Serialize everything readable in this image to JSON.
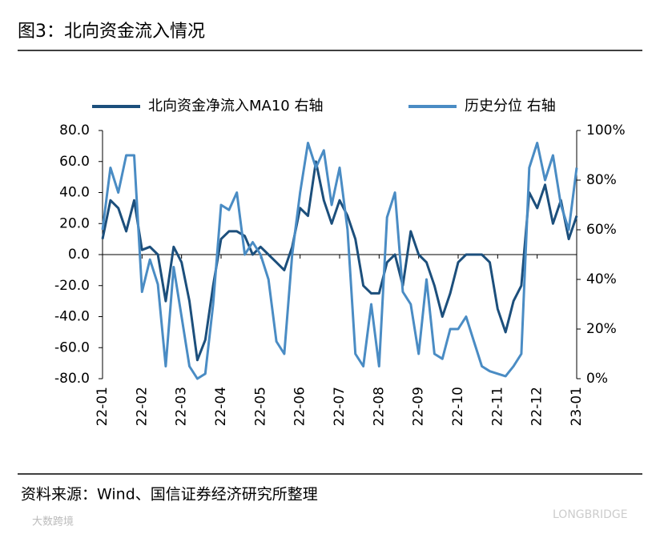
{
  "chart_data": {
    "type": "line",
    "title": "图3：北向资金流入情况",
    "source": "资料来源：Wind、国信证券经济研究所整理",
    "watermarks": [
      "大数跨境",
      "LONGBRIDGE"
    ],
    "categories": [
      "22-01",
      null,
      null,
      null,
      null,
      "22-02",
      null,
      null,
      null,
      null,
      "22-03",
      null,
      null,
      null,
      null,
      "22-04",
      null,
      null,
      null,
      null,
      "22-05",
      null,
      null,
      null,
      null,
      "22-06",
      null,
      null,
      null,
      null,
      "22-07",
      null,
      null,
      null,
      null,
      "22-08",
      null,
      null,
      null,
      null,
      "22-09",
      null,
      null,
      null,
      null,
      "22-10",
      null,
      null,
      null,
      null,
      "22-11",
      null,
      null,
      null,
      null,
      "22-12",
      null,
      null,
      null,
      null,
      "23-01"
    ],
    "series": [
      {
        "name": "北向资金净流入MA10 右轴",
        "color": "#1c4f7c",
        "axis": "y",
        "values": [
          10,
          35,
          30,
          15,
          35,
          3,
          5,
          0,
          -30,
          5,
          -5,
          -30,
          -68,
          -55,
          -20,
          10,
          15,
          15,
          12,
          0,
          5,
          0,
          -5,
          -10,
          5,
          30,
          25,
          60,
          35,
          20,
          35,
          25,
          10,
          -20,
          -25,
          -25,
          -5,
          0,
          -20,
          15,
          0,
          -5,
          -20,
          -40,
          -25,
          -5,
          0,
          0,
          0,
          -5,
          -35,
          -50,
          -30,
          -20,
          40,
          30,
          45,
          20,
          35,
          10,
          25
        ]
      },
      {
        "name": "历史分位 右轴",
        "color": "#4a8cc4",
        "axis": "y2",
        "values": [
          60,
          85,
          75,
          90,
          90,
          35,
          48,
          38,
          5,
          45,
          25,
          5,
          0,
          2,
          30,
          70,
          68,
          75,
          50,
          55,
          50,
          40,
          15,
          10,
          50,
          75,
          95,
          85,
          92,
          70,
          85,
          60,
          10,
          5,
          30,
          5,
          65,
          75,
          35,
          30,
          10,
          40,
          10,
          8,
          20,
          20,
          25,
          15,
          5,
          3,
          2,
          1,
          5,
          10,
          85,
          95,
          80,
          90,
          70,
          60,
          85
        ]
      }
    ],
    "ylim": [
      -80,
      80
    ],
    "yticks": [
      {
        "value": 80,
        "label": "80.0"
      },
      {
        "value": 60,
        "label": "60.0"
      },
      {
        "value": 40,
        "label": "40.0"
      },
      {
        "value": 20,
        "label": "20.0"
      },
      {
        "value": 0,
        "label": "0.0"
      },
      {
        "value": -20,
        "label": "-20.0"
      },
      {
        "value": -40,
        "label": "-40.0"
      },
      {
        "value": -60,
        "label": "-60.0"
      },
      {
        "value": -80,
        "label": "-80.0"
      }
    ],
    "y2lim": [
      0,
      100
    ],
    "y2ticks": [
      {
        "value": 100,
        "label": "100%"
      },
      {
        "value": 80,
        "label": "80%"
      },
      {
        "value": 60,
        "label": "60%"
      },
      {
        "value": 40,
        "label": "40%"
      },
      {
        "value": 20,
        "label": "20%"
      },
      {
        "value": 0,
        "label": "0%"
      }
    ],
    "legend": "top"
  }
}
